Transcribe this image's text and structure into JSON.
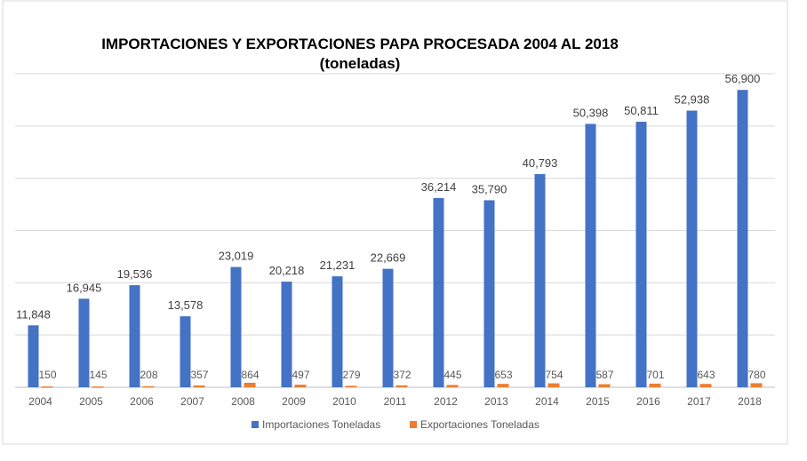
{
  "chart_data": {
    "type": "bar",
    "title": "IMPORTACIONES  Y EXPORTACIONES  PAPA PROCESADA  2004 AL 2018",
    "subtitle": "(toneladas)",
    "xlabel": "",
    "ylabel": "",
    "ylim": [
      0,
      60000
    ],
    "grid": true,
    "legend_position": "bottom",
    "categories": [
      "2004",
      "2005",
      "2006",
      "2007",
      "2008",
      "2009",
      "2010",
      "2011",
      "2012",
      "2013",
      "2014",
      "2015",
      "2016",
      "2017",
      "2018"
    ],
    "series": [
      {
        "name": "Importaciones Toneladas",
        "color": "#4472C4",
        "values": [
          11848,
          16945,
          19536,
          13578,
          23019,
          20218,
          21231,
          22669,
          36214,
          35790,
          40793,
          50398,
          50811,
          52938,
          56900
        ]
      },
      {
        "name": "Exportaciones Toneladas",
        "color": "#ED7D31",
        "values": [
          150,
          145,
          208,
          357,
          864,
          497,
          279,
          372,
          445,
          653,
          754,
          587,
          701,
          643,
          780
        ]
      }
    ]
  }
}
